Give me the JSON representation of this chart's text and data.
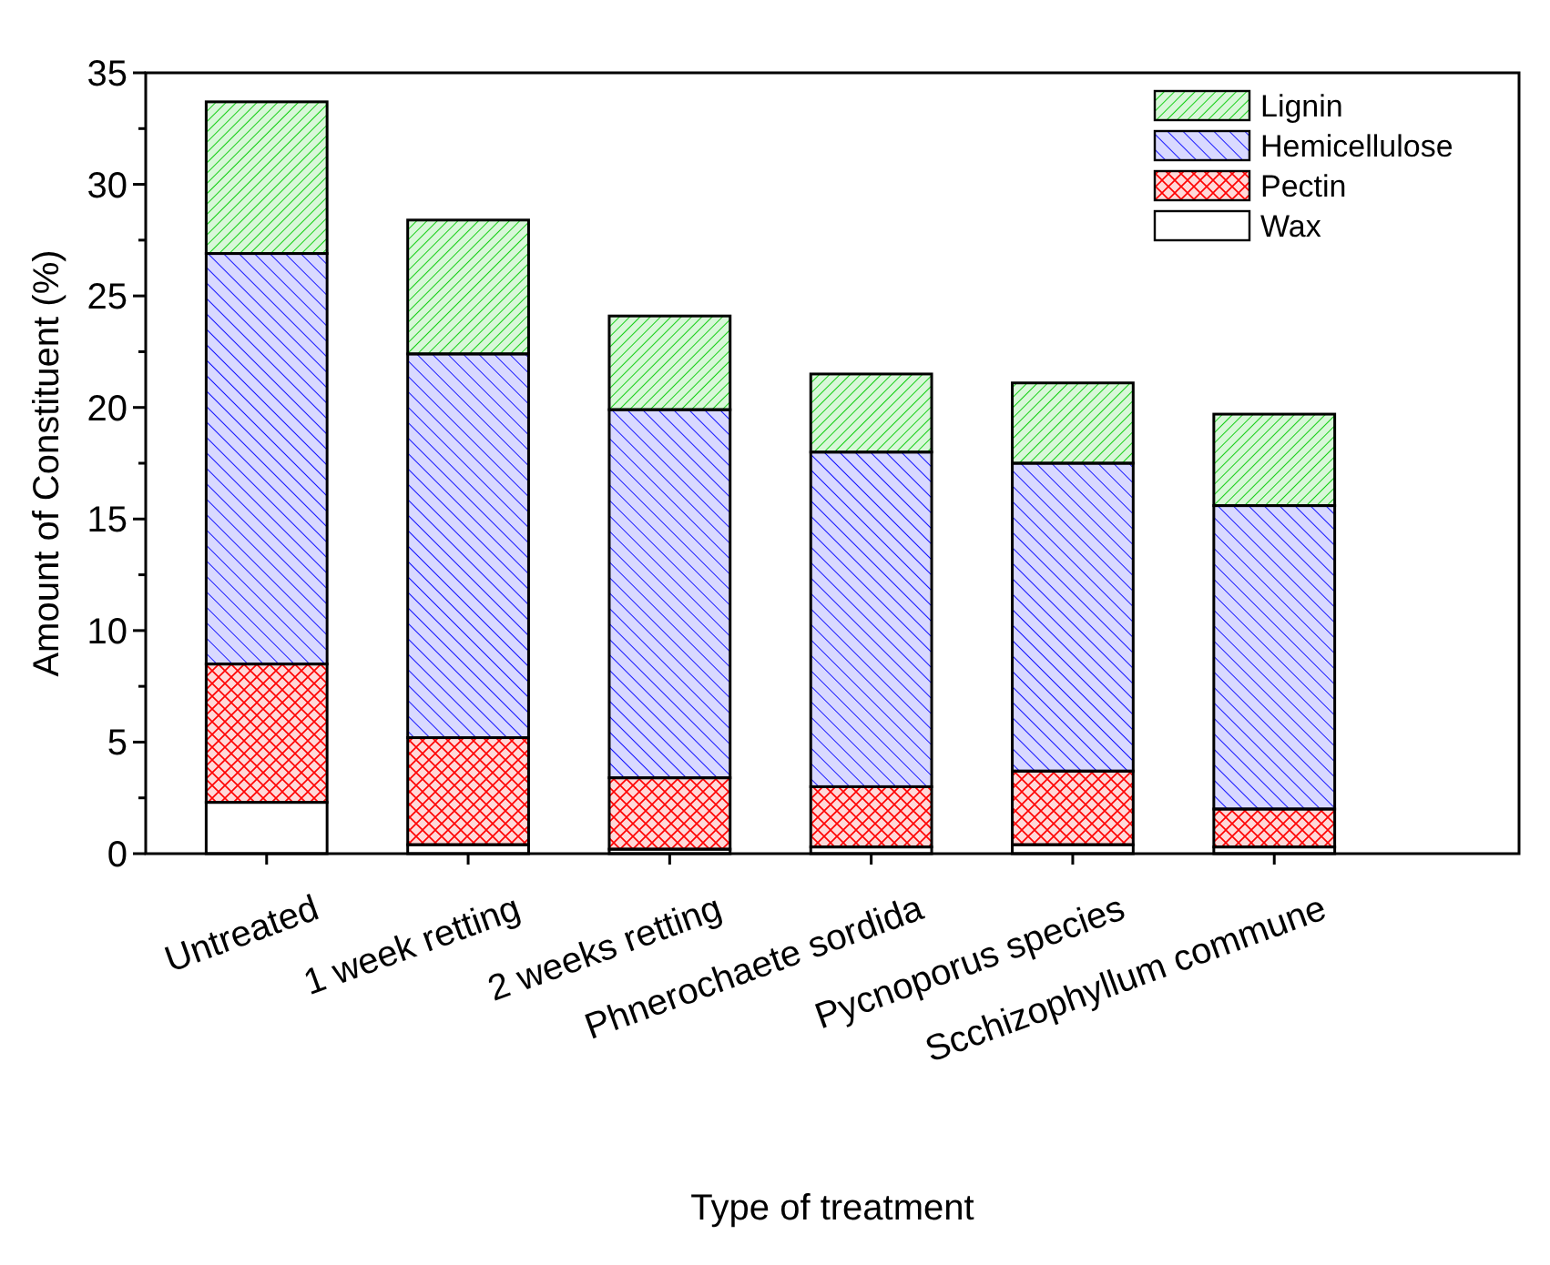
{
  "chart_data": {
    "type": "bar",
    "stacked": true,
    "xlabel": "Type of treatment",
    "ylabel": "Amount of Constituent (%)",
    "categories": [
      "Untreated",
      "1 week retting",
      "2 weeks retting",
      "Phnerochaete sordida",
      "Pycnoporus species",
      "Scchizophyllum commune"
    ],
    "series": [
      {
        "name": "Wax",
        "color": "#ffffff",
        "values": [
          2.3,
          0.4,
          0.2,
          0.3,
          0.4,
          0.3
        ]
      },
      {
        "name": "Pectin",
        "color": "#ff0000",
        "values": [
          6.2,
          4.8,
          3.2,
          2.7,
          3.3,
          1.7
        ]
      },
      {
        "name": "Hemicellulose",
        "color": "#0000ff",
        "values": [
          18.4,
          17.2,
          16.5,
          15.0,
          13.8,
          13.6
        ]
      },
      {
        "name": "Lignin",
        "color": "#00cc00",
        "values": [
          6.8,
          6.0,
          4.2,
          3.5,
          3.6,
          4.1
        ]
      }
    ],
    "ylim": [
      0,
      35
    ],
    "yticks": [
      0,
      {
        "value": 2.5,
        "label": null
      },
      5,
      {
        "value": 7.5,
        "label": null
      },
      10,
      {
        "value": 12.5,
        "label": null
      },
      15,
      {
        "value": 17.5,
        "label": null
      },
      20,
      {
        "value": 22.5,
        "label": null
      },
      25,
      {
        "value": 27.5,
        "label": null
      },
      30,
      {
        "value": 32.5,
        "label": null
      },
      35
    ],
    "legend": "top right",
    "grid": false
  }
}
